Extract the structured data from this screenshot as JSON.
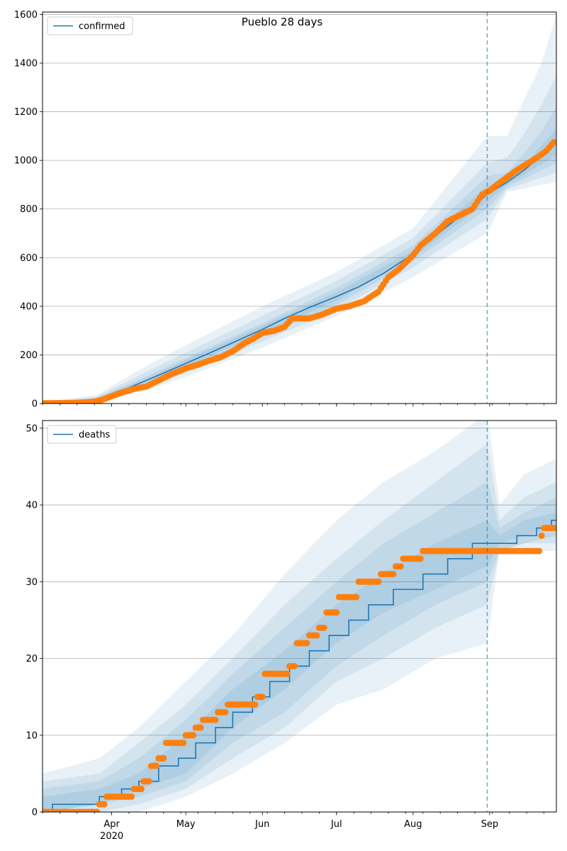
{
  "title": "Pueblo 28 days",
  "colors": {
    "median": "#1f77b4",
    "band": "#1f77b4",
    "observed": "#ff7f0e",
    "grid": "#b0b0b0"
  },
  "chart_data": [
    {
      "type": "line",
      "name": "confirmed-panel",
      "legend": "confirmed",
      "legend_position": "upper left",
      "title": "Pueblo 28 days",
      "grid": "horizontal",
      "x_type": "date",
      "xlim": [
        "2020-03-04",
        "2020-09-28"
      ],
      "ylim": [
        0,
        1610
      ],
      "yticks": [
        0,
        200,
        400,
        600,
        800,
        1000,
        1200,
        1400,
        1600
      ],
      "forecast_start": "2020-08-31",
      "median": {
        "x": [
          "2020-03-04",
          "2020-03-12",
          "2020-03-19",
          "2020-03-26",
          "2020-04-01",
          "2020-04-08",
          "2020-04-15",
          "2020-04-22",
          "2020-05-01",
          "2020-05-10",
          "2020-05-20",
          "2020-06-01",
          "2020-06-10",
          "2020-06-20",
          "2020-07-01",
          "2020-07-10",
          "2020-07-20",
          "2020-08-01",
          "2020-08-10",
          "2020-08-20",
          "2020-08-31",
          "2020-09-08",
          "2020-09-15",
          "2020-09-22",
          "2020-09-28"
        ],
        "y": [
          2,
          3,
          8,
          18,
          38,
          65,
          95,
          125,
          165,
          205,
          250,
          305,
          350,
          395,
          440,
          480,
          535,
          615,
          690,
          770,
          860,
          910,
          960,
          1020,
          1075
        ]
      },
      "bands": [
        {
          "x": [
            "2020-03-04",
            "2020-03-26",
            "2020-04-15",
            "2020-05-01",
            "2020-06-01",
            "2020-07-01",
            "2020-08-01",
            "2020-08-31",
            "2020-09-08",
            "2020-09-15",
            "2020-09-22",
            "2020-09-28"
          ],
          "lower": [
            0,
            5,
            55,
            110,
            230,
            360,
            520,
            700,
            870,
            885,
            900,
            910
          ],
          "upper": [
            5,
            35,
            155,
            240,
            400,
            540,
            720,
            1100,
            1100,
            1250,
            1400,
            1600
          ]
        },
        {
          "x": [
            "2020-03-04",
            "2020-03-26",
            "2020-04-15",
            "2020-05-01",
            "2020-06-01",
            "2020-07-01",
            "2020-08-01",
            "2020-08-31",
            "2020-09-08",
            "2020-09-15",
            "2020-09-22",
            "2020-09-28"
          ],
          "lower": [
            0,
            8,
            70,
            125,
            255,
            385,
            560,
            760,
            880,
            905,
            930,
            950
          ],
          "upper": [
            4,
            28,
            130,
            210,
            360,
            505,
            680,
            990,
            1010,
            1110,
            1230,
            1350
          ]
        },
        {
          "x": [
            "2020-03-04",
            "2020-03-26",
            "2020-04-15",
            "2020-05-01",
            "2020-06-01",
            "2020-07-01",
            "2020-08-01",
            "2020-08-31",
            "2020-09-08",
            "2020-09-15",
            "2020-09-22",
            "2020-09-28"
          ],
          "lower": [
            1,
            11,
            80,
            140,
            275,
            405,
            585,
            800,
            890,
            925,
            960,
            990
          ],
          "upper": [
            3,
            24,
            112,
            188,
            330,
            475,
            650,
            935,
            950,
            1030,
            1120,
            1220
          ]
        },
        {
          "x": [
            "2020-03-04",
            "2020-03-26",
            "2020-04-15",
            "2020-05-01",
            "2020-06-01",
            "2020-07-01",
            "2020-08-01",
            "2020-08-31",
            "2020-09-08",
            "2020-09-15",
            "2020-09-22",
            "2020-09-28"
          ],
          "lower": [
            1,
            14,
            87,
            152,
            290,
            422,
            600,
            830,
            900,
            940,
            985,
            1020
          ],
          "upper": [
            3,
            21,
            103,
            178,
            320,
            458,
            630,
            895,
            925,
            980,
            1060,
            1130
          ]
        }
      ],
      "observed": {
        "x": [
          "2020-03-04",
          "2020-03-11",
          "2020-03-18",
          "2020-03-22",
          "2020-03-25",
          "2020-03-28",
          "2020-04-01",
          "2020-04-05",
          "2020-04-10",
          "2020-04-15",
          "2020-04-20",
          "2020-04-25",
          "2020-05-01",
          "2020-05-06",
          "2020-05-10",
          "2020-05-15",
          "2020-05-20",
          "2020-05-25",
          "2020-05-28",
          "2020-06-01",
          "2020-06-06",
          "2020-06-10",
          "2020-06-13",
          "2020-06-20",
          "2020-06-25",
          "2020-07-01",
          "2020-07-06",
          "2020-07-12",
          "2020-07-18",
          "2020-07-22",
          "2020-07-26",
          "2020-08-01",
          "2020-08-04",
          "2020-08-10",
          "2020-08-15",
          "2020-08-20",
          "2020-08-25",
          "2020-08-29",
          "2020-09-01",
          "2020-09-04",
          "2020-09-08",
          "2020-09-12",
          "2020-09-16",
          "2020-09-20",
          "2020-09-24",
          "2020-09-27"
        ],
        "y": [
          1,
          2,
          3,
          5,
          8,
          15,
          30,
          45,
          60,
          70,
          95,
          120,
          145,
          160,
          175,
          190,
          215,
          250,
          265,
          290,
          300,
          315,
          350,
          350,
          365,
          390,
          400,
          420,
          460,
          520,
          550,
          610,
          650,
          700,
          750,
          775,
          800,
          860,
          875,
          900,
          930,
          960,
          985,
          1010,
          1040,
          1075
        ]
      },
      "x_ticks": [
        {
          "date": "2020-04-01",
          "label": "Apr",
          "sublabel": "2020"
        },
        {
          "date": "2020-05-01",
          "label": "May",
          "sublabel": ""
        },
        {
          "date": "2020-06-01",
          "label": "Jun",
          "sublabel": ""
        },
        {
          "date": "2020-07-01",
          "label": "Jul",
          "sublabel": ""
        },
        {
          "date": "2020-08-01",
          "label": "Aug",
          "sublabel": ""
        },
        {
          "date": "2020-09-01",
          "label": "Sep",
          "sublabel": ""
        }
      ]
    },
    {
      "type": "line",
      "name": "deaths-panel",
      "legend": "deaths",
      "legend_position": "upper left",
      "title": "",
      "grid": "horizontal",
      "x_type": "date",
      "xlim": [
        "2020-03-04",
        "2020-09-28"
      ],
      "ylim": [
        0,
        51
      ],
      "yticks": [
        0,
        10,
        20,
        30,
        40,
        50
      ],
      "forecast_start": "2020-08-31",
      "median": {
        "x": [
          "2020-03-04",
          "2020-03-08",
          "2020-03-27",
          "2020-04-05",
          "2020-04-12",
          "2020-04-20",
          "2020-04-28",
          "2020-05-05",
          "2020-05-13",
          "2020-05-20",
          "2020-05-28",
          "2020-06-04",
          "2020-06-12",
          "2020-06-20",
          "2020-06-28",
          "2020-07-06",
          "2020-07-14",
          "2020-07-24",
          "2020-08-05",
          "2020-08-15",
          "2020-08-25",
          "2020-08-31",
          "2020-09-05",
          "2020-09-12",
          "2020-09-20",
          "2020-09-26",
          "2020-09-28"
        ],
        "y": [
          0,
          1,
          2,
          3,
          4,
          6,
          7,
          9,
          11,
          13,
          15,
          17,
          19,
          21,
          23,
          25,
          27,
          29,
          31,
          33,
          35,
          35,
          35,
          36,
          37,
          38,
          38
        ]
      },
      "bands": [
        {
          "x": [
            "2020-03-04",
            "2020-03-27",
            "2020-04-12",
            "2020-05-01",
            "2020-05-20",
            "2020-06-10",
            "2020-07-01",
            "2020-07-20",
            "2020-08-10",
            "2020-08-31",
            "2020-09-05",
            "2020-09-15",
            "2020-09-28"
          ],
          "lower": [
            0,
            0,
            0,
            2,
            5,
            9,
            14,
            16,
            20,
            22,
            34,
            34,
            34
          ],
          "upper": [
            5,
            7,
            11,
            17,
            23,
            31,
            38,
            43,
            47,
            52,
            40,
            44,
            46
          ]
        },
        {
          "x": [
            "2020-03-04",
            "2020-03-27",
            "2020-04-12",
            "2020-05-01",
            "2020-05-20",
            "2020-06-10",
            "2020-07-01",
            "2020-07-20",
            "2020-08-10",
            "2020-08-31",
            "2020-09-05",
            "2020-09-15",
            "2020-09-28"
          ],
          "lower": [
            0,
            0,
            1,
            3,
            7,
            11,
            17,
            20,
            24,
            27,
            34,
            35,
            35
          ],
          "upper": [
            4,
            5,
            9,
            14,
            20,
            27,
            33,
            38,
            43,
            48,
            38,
            41,
            43
          ]
        },
        {
          "x": [
            "2020-03-04",
            "2020-03-27",
            "2020-04-12",
            "2020-05-01",
            "2020-05-20",
            "2020-06-10",
            "2020-07-01",
            "2020-07-20",
            "2020-08-10",
            "2020-08-31",
            "2020-09-05",
            "2020-09-15",
            "2020-09-28"
          ],
          "lower": [
            0,
            1,
            2,
            4,
            9,
            13,
            19,
            23,
            27,
            30,
            34,
            35,
            36
          ],
          "upper": [
            3,
            4,
            7,
            12,
            18,
            24,
            30,
            35,
            39,
            43,
            37,
            39,
            41
          ]
        },
        {
          "x": [
            "2020-03-04",
            "2020-03-27",
            "2020-04-12",
            "2020-05-01",
            "2020-05-20",
            "2020-06-10",
            "2020-07-01",
            "2020-07-20",
            "2020-08-10",
            "2020-08-31",
            "2020-09-05",
            "2020-09-15",
            "2020-09-28"
          ],
          "lower": [
            0,
            1,
            3,
            5,
            11,
            16,
            22,
            26,
            29,
            32,
            35,
            36,
            37
          ],
          "upper": [
            2,
            3,
            5,
            10,
            16,
            21,
            27,
            31,
            35,
            38,
            36,
            38,
            39
          ]
        }
      ],
      "observed": {
        "x": [
          "2020-03-04",
          "2020-03-27",
          "2020-03-30",
          "2020-04-10",
          "2020-04-14",
          "2020-04-17",
          "2020-04-20",
          "2020-04-23",
          "2020-04-26",
          "2020-05-01",
          "2020-05-05",
          "2020-05-08",
          "2020-05-14",
          "2020-05-18",
          "2020-05-30",
          "2020-06-02",
          "2020-06-09",
          "2020-06-12",
          "2020-06-15",
          "2020-06-20",
          "2020-06-24",
          "2020-06-27",
          "2020-07-02",
          "2020-07-10",
          "2020-07-14",
          "2020-07-19",
          "2020-07-25",
          "2020-07-28",
          "2020-08-05",
          "2020-08-15",
          "2020-08-31",
          "2020-09-15",
          "2020-09-22",
          "2020-09-23",
          "2020-09-27"
        ],
        "y": [
          0,
          1,
          2,
          3,
          4,
          6,
          7,
          9,
          9,
          10,
          11,
          12,
          13,
          14,
          15,
          18,
          18,
          19,
          22,
          23,
          24,
          26,
          28,
          30,
          30,
          31,
          32,
          33,
          34,
          34,
          34,
          34,
          36,
          37,
          37
        ]
      },
      "x_ticks": [
        {
          "date": "2020-04-01",
          "label": "Apr",
          "sublabel": "2020"
        },
        {
          "date": "2020-05-01",
          "label": "May",
          "sublabel": ""
        },
        {
          "date": "2020-06-01",
          "label": "Jun",
          "sublabel": ""
        },
        {
          "date": "2020-07-01",
          "label": "Jul",
          "sublabel": ""
        },
        {
          "date": "2020-08-01",
          "label": "Aug",
          "sublabel": ""
        },
        {
          "date": "2020-09-01",
          "label": "Sep",
          "sublabel": ""
        }
      ]
    }
  ]
}
